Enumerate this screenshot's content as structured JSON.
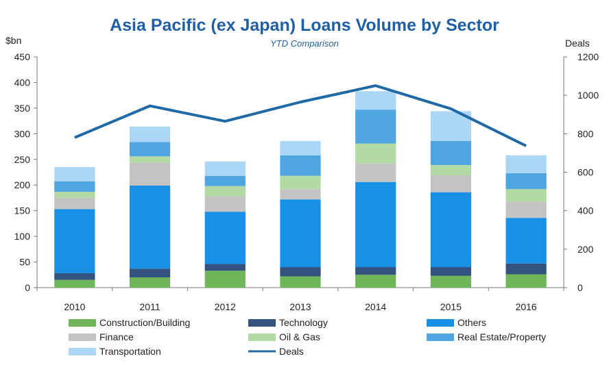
{
  "chart_data": {
    "type": "bar",
    "title": "Asia Pacific (ex Japan) Loans Volume by Sector",
    "subtitle": "YTD Comparison",
    "ylabel_left": "$bn",
    "ylabel_right": "Deals",
    "categories": [
      "2010",
      "2011",
      "2012",
      "2013",
      "2014",
      "2015",
      "2016"
    ],
    "ylim_left": [
      0,
      450
    ],
    "yticks_left": [
      0,
      50,
      100,
      150,
      200,
      250,
      300,
      350,
      400,
      450
    ],
    "ylim_right": [
      0,
      1200
    ],
    "yticks_right": [
      0,
      200,
      400,
      600,
      800,
      1000,
      1200
    ],
    "stacked": true,
    "legend_position": "bottom",
    "series": [
      {
        "name": "Construction/Building",
        "color": "#6fb55a",
        "values": [
          15,
          20,
          33,
          22,
          25,
          23,
          26
        ]
      },
      {
        "name": "Technology",
        "color": "#34527e",
        "values": [
          13,
          17,
          13,
          18,
          15,
          17,
          21
        ]
      },
      {
        "name": "Others",
        "color": "#1890e6",
        "values": [
          125,
          162,
          102,
          132,
          166,
          146,
          89
        ]
      },
      {
        "name": "Finance",
        "color": "#c3c3c3",
        "values": [
          22,
          45,
          30,
          20,
          36,
          33,
          32
        ]
      },
      {
        "name": "Oil & Gas",
        "color": "#b2dba3",
        "values": [
          12,
          12,
          20,
          26,
          39,
          20,
          24
        ]
      },
      {
        "name": "Real Estate/Property",
        "color": "#4ea5e0",
        "values": [
          20,
          28,
          20,
          40,
          66,
          47,
          31
        ]
      },
      {
        "name": "Transportation",
        "color": "#acd6f5",
        "values": [
          28,
          30,
          28,
          28,
          36,
          58,
          35
        ]
      }
    ],
    "line_series": {
      "name": "Deals",
      "color": "#1f6aa6",
      "axis": "right",
      "values": [
        780,
        945,
        865,
        965,
        1050,
        930,
        737
      ]
    }
  }
}
